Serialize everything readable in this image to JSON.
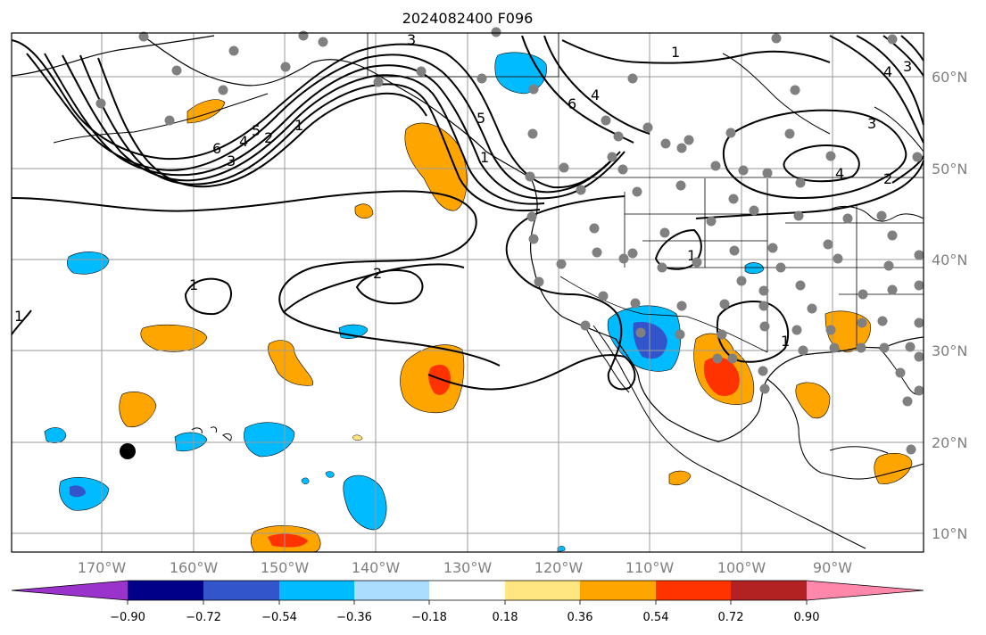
{
  "title": "2024082400 F096",
  "lat_labels": [
    "60°N",
    "50°N",
    "40°N",
    "30°N",
    "20°N",
    "10°N"
  ],
  "lon_labels": [
    "170°W",
    "160°W",
    "150°W",
    "140°W",
    "130°W",
    "120°W",
    "110°W",
    "100°W",
    "90°W"
  ],
  "colorbar": {
    "ticks": [
      "−0.90",
      "−0.72",
      "−0.54",
      "−0.36",
      "−0.18",
      "0.18",
      "0.36",
      "0.54",
      "0.72",
      "0.90"
    ],
    "colors": [
      "#9933cc",
      "#000088",
      "#3355cc",
      "#00bbff",
      "#aaddff",
      "#ffffff",
      "#ffe680",
      "#ffa500",
      "#ff3300",
      "#b22222",
      "#ff88aa",
      "#ff88aa"
    ]
  },
  "contour_labels": [
    "1",
    "2",
    "3",
    "4",
    "5",
    "6",
    "1",
    "2",
    "3",
    "4",
    "5",
    "6",
    "1",
    "2",
    "1",
    "1",
    "1",
    "1",
    "1",
    "3",
    "4",
    "2",
    "6",
    "5",
    "4",
    "3"
  ],
  "colors": {
    "contour": "#000000",
    "grid": "#999999",
    "coast": "#000000",
    "station_dot": "#808080",
    "marker": "#000000"
  }
}
